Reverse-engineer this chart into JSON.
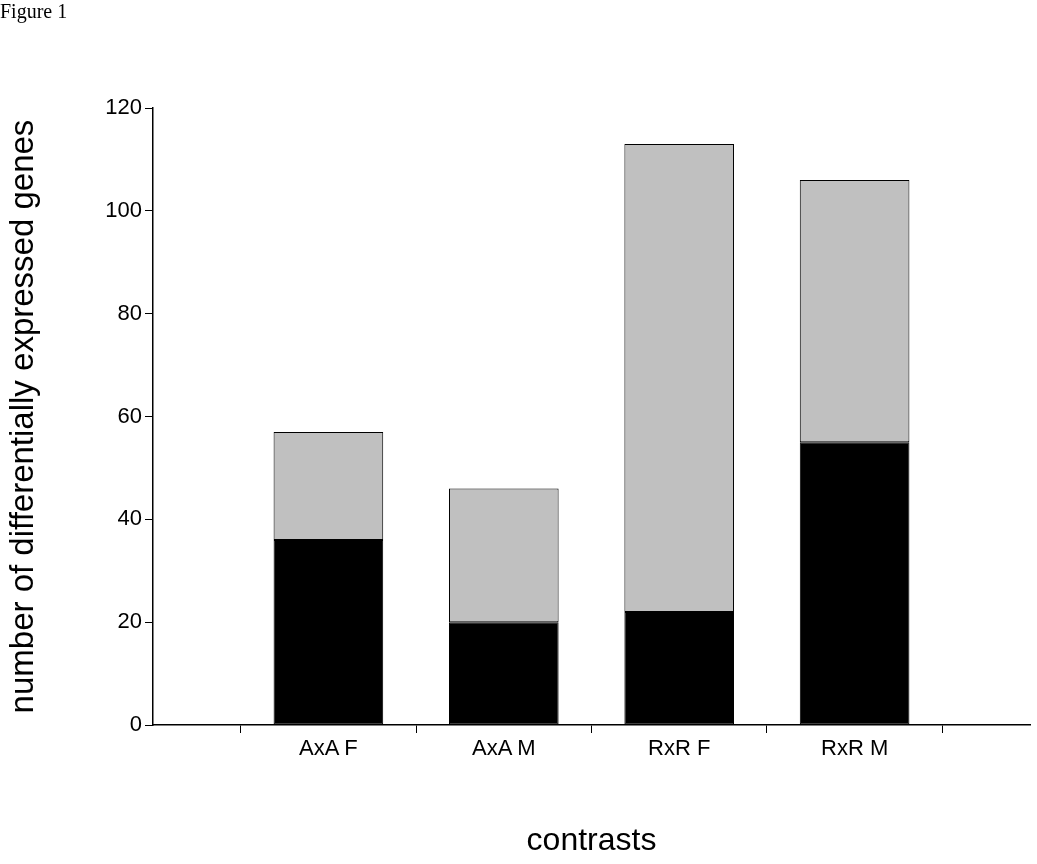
{
  "chart_data": {
    "type": "bar",
    "xlabel": "contrasts",
    "ylabel": "number of differentially expressed genes",
    "annotations": [
      "Figure 1"
    ],
    "categories": [
      "AxA F",
      "AxA M",
      "RxR F",
      "RxR M"
    ],
    "stacked": true,
    "series": [
      {
        "color": "#000000",
        "values": [
          36,
          20,
          22,
          55
        ]
      },
      {
        "color": "#c0c0c0",
        "values": [
          21,
          26,
          91,
          51
        ]
      }
    ],
    "ylim": [
      0,
      120
    ],
    "yticks": [
      0,
      20,
      40,
      60,
      80,
      100,
      120
    ],
    "grid": false,
    "legend": false
  }
}
